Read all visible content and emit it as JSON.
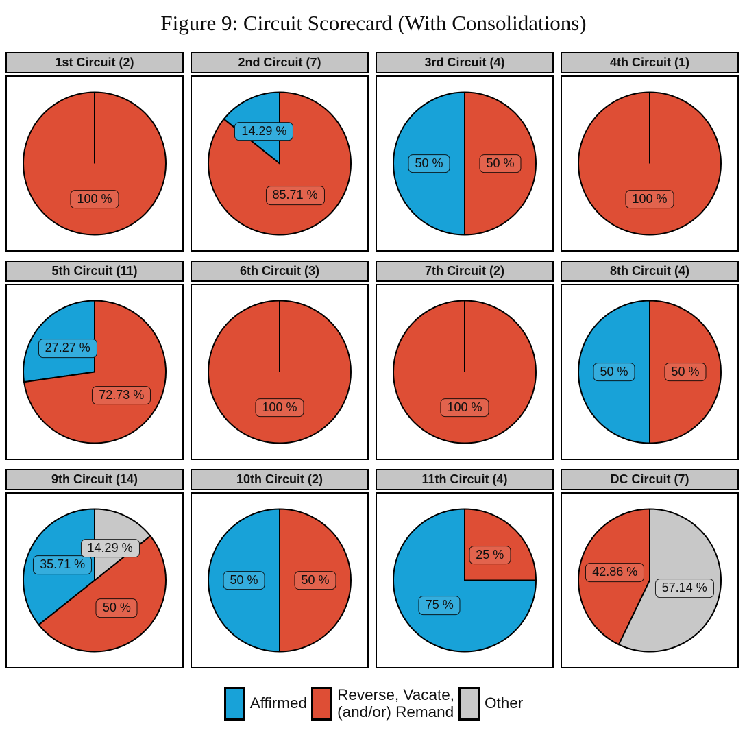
{
  "title": "Figure 9: Circuit Scorecard (With Consolidations)",
  "colors": {
    "affirmed": "#18A2D8",
    "reverse": "#DE4E35",
    "other": "#C8C8C8",
    "panel_header_bg": "#C5C5C5",
    "panel_border": "#000000",
    "background": "#FFFFFF"
  },
  "legend": {
    "items": [
      {
        "key": "affirmed",
        "label": "Affirmed"
      },
      {
        "key": "reverse",
        "label": "Reverse, Vacate,\n(and/or) Remand"
      },
      {
        "key": "other",
        "label": "Other"
      }
    ]
  },
  "chart_data": [
    {
      "type": "pie",
      "title": "1st Circuit (2)",
      "slices": [
        {
          "label": "Reverse, Vacate, (and/or) Remand",
          "key": "reverse",
          "value": 100,
          "display": "100 %"
        }
      ]
    },
    {
      "type": "pie",
      "title": "2nd Circuit (7)",
      "slices": [
        {
          "label": "Affirmed",
          "key": "affirmed",
          "value": 14.29,
          "display": "14.29 %"
        },
        {
          "label": "Reverse, Vacate, (and/or) Remand",
          "key": "reverse",
          "value": 85.71,
          "display": "85.71 %"
        }
      ]
    },
    {
      "type": "pie",
      "title": "3rd Circuit (4)",
      "slices": [
        {
          "label": "Affirmed",
          "key": "affirmed",
          "value": 50,
          "display": "50 %"
        },
        {
          "label": "Reverse, Vacate, (and/or) Remand",
          "key": "reverse",
          "value": 50,
          "display": "50 %"
        }
      ]
    },
    {
      "type": "pie",
      "title": "4th Circuit (1)",
      "slices": [
        {
          "label": "Reverse, Vacate, (and/or) Remand",
          "key": "reverse",
          "value": 100,
          "display": "100 %"
        }
      ]
    },
    {
      "type": "pie",
      "title": "5th Circuit (11)",
      "slices": [
        {
          "label": "Affirmed",
          "key": "affirmed",
          "value": 27.27,
          "display": "27.27 %"
        },
        {
          "label": "Reverse, Vacate, (and/or) Remand",
          "key": "reverse",
          "value": 72.73,
          "display": "72.73 %"
        }
      ]
    },
    {
      "type": "pie",
      "title": "6th Circuit (3)",
      "slices": [
        {
          "label": "Reverse, Vacate, (and/or) Remand",
          "key": "reverse",
          "value": 100,
          "display": "100 %"
        }
      ]
    },
    {
      "type": "pie",
      "title": "7th Circuit (2)",
      "slices": [
        {
          "label": "Reverse, Vacate, (and/or) Remand",
          "key": "reverse",
          "value": 100,
          "display": "100 %"
        }
      ]
    },
    {
      "type": "pie",
      "title": "8th Circuit (4)",
      "slices": [
        {
          "label": "Affirmed",
          "key": "affirmed",
          "value": 50,
          "display": "50 %"
        },
        {
          "label": "Reverse, Vacate, (and/or) Remand",
          "key": "reverse",
          "value": 50,
          "display": "50 %"
        }
      ]
    },
    {
      "type": "pie",
      "title": "9th Circuit (14)",
      "slices": [
        {
          "label": "Affirmed",
          "key": "affirmed",
          "value": 35.71,
          "display": "35.71 %"
        },
        {
          "label": "Reverse, Vacate, (and/or) Remand",
          "key": "reverse",
          "value": 50,
          "display": "50 %"
        },
        {
          "label": "Other",
          "key": "other",
          "value": 14.29,
          "display": "14.29 %"
        }
      ]
    },
    {
      "type": "pie",
      "title": "10th Circuit (2)",
      "slices": [
        {
          "label": "Affirmed",
          "key": "affirmed",
          "value": 50,
          "display": "50 %"
        },
        {
          "label": "Reverse, Vacate, (and/or) Remand",
          "key": "reverse",
          "value": 50,
          "display": "50 %"
        }
      ]
    },
    {
      "type": "pie",
      "title": "11th Circuit (4)",
      "slices": [
        {
          "label": "Affirmed",
          "key": "affirmed",
          "value": 75,
          "display": "75 %"
        },
        {
          "label": "Reverse, Vacate, (and/or) Remand",
          "key": "reverse",
          "value": 25,
          "display": "25 %"
        }
      ]
    },
    {
      "type": "pie",
      "title": "DC Circuit (7)",
      "slices": [
        {
          "label": "Reverse, Vacate, (and/or) Remand",
          "key": "reverse",
          "value": 42.86,
          "display": "42.86 %"
        },
        {
          "label": "Other",
          "key": "other",
          "value": 57.14,
          "display": "57.14 %"
        }
      ]
    }
  ]
}
